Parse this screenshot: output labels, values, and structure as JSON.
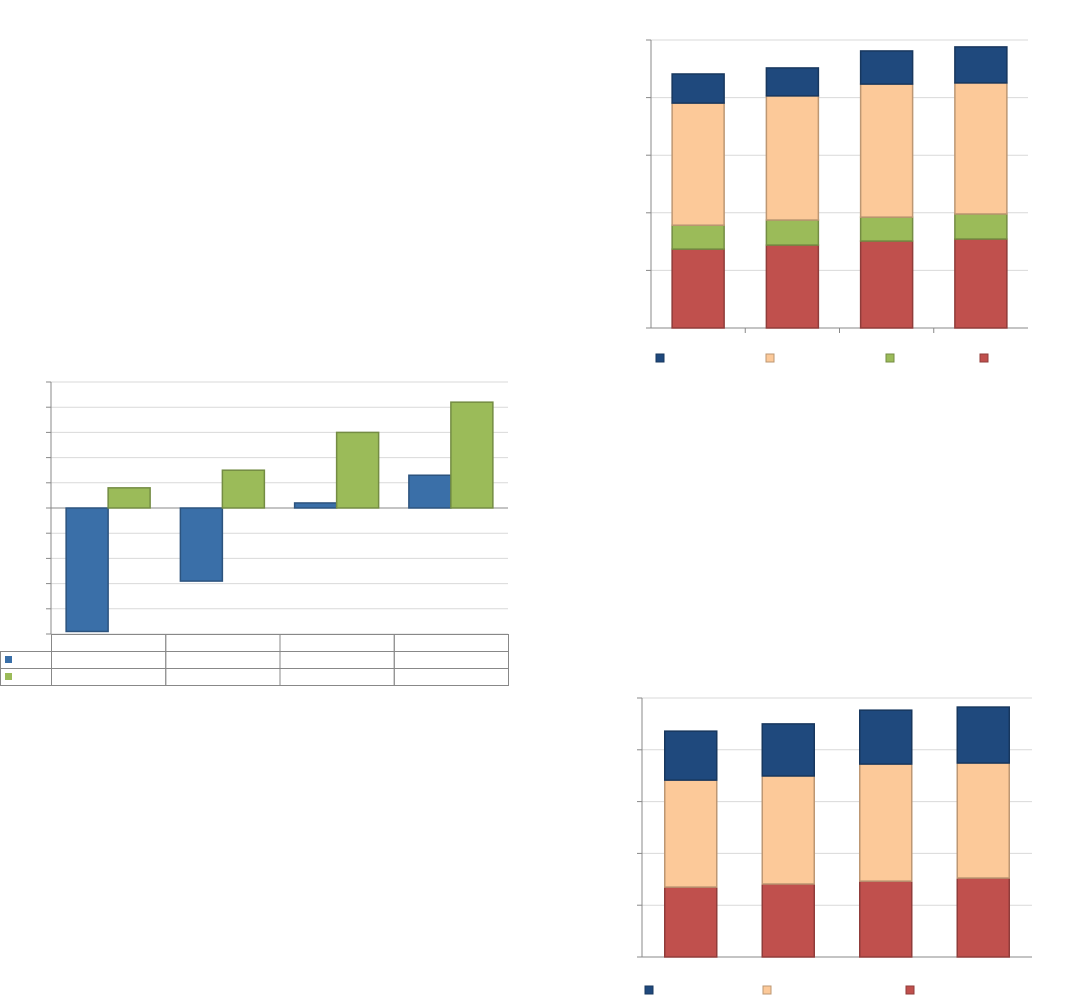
{
  "chart_data": [
    {
      "type": "stacked_bar",
      "categories": [
        null,
        null,
        null,
        null
      ],
      "series": [
        {
          "color": "#c0504d",
          "values": [
            27.4,
            28.8,
            30.2,
            30.9
          ]
        },
        {
          "color": "#9bbb59",
          "values": [
            8.3,
            8.7,
            8.3,
            8.7
          ]
        },
        {
          "color": "#fcc999",
          "values": [
            42.4,
            43.1,
            46.2,
            45.5
          ]
        },
        {
          "color": "#1f497d",
          "values": [
            10.1,
            9.7,
            11.5,
            12.5
          ]
        }
      ],
      "ylim": [
        0,
        100
      ],
      "yticks": [
        0,
        20,
        40,
        60,
        80,
        100
      ],
      "grid": true,
      "legend": "bottom"
    },
    {
      "type": "bar",
      "categories": [
        null,
        null,
        null,
        null
      ],
      "series": [
        {
          "color": "#3a6fa8",
          "values": [
            -4.9,
            -2.9,
            0.2,
            1.3
          ]
        },
        {
          "color": "#9bbb59",
          "values": [
            0.8,
            1.5,
            3.0,
            4.2
          ]
        }
      ],
      "ylim": [
        -5,
        5
      ],
      "yticks": [
        -5,
        -4,
        -3,
        -2,
        -1,
        0,
        1,
        2,
        3,
        4,
        5
      ],
      "grid": true,
      "legend": "data-table"
    },
    {
      "type": "stacked_bar",
      "categories": [
        null,
        null,
        null,
        null
      ],
      "series": [
        {
          "color": "#c0504d",
          "values": [
            27.0,
            28.2,
            29.3,
            30.5
          ]
        },
        {
          "color": "#fcc999",
          "values": [
            41.3,
            41.7,
            45.2,
            44.4
          ]
        },
        {
          "color": "#1f497d",
          "values": [
            18.9,
            20.1,
            20.8,
            21.6
          ]
        }
      ],
      "ylim": [
        0,
        100
      ],
      "yticks": [
        0,
        20,
        40,
        60,
        80,
        100
      ],
      "grid": true,
      "legend": "bottom"
    }
  ]
}
